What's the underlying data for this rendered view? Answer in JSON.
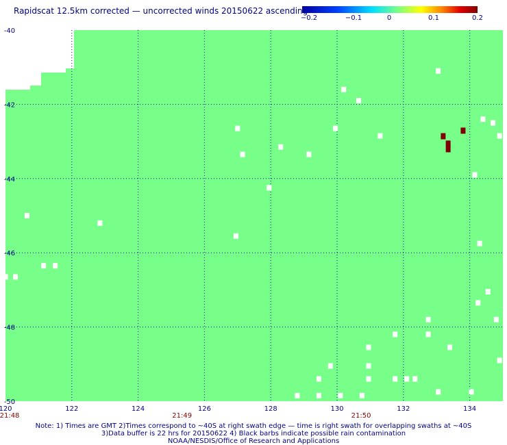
{
  "title": "Rapidscat 12.5km corrected — uncorrected winds 20150622 ascending",
  "colorbar": {
    "ticks": [
      "−0.2",
      "−0.1",
      "0",
      "0.1",
      "0.2"
    ],
    "colors": [
      "#0000a0",
      "#0040ff",
      "#00e0ff",
      "#80ff80",
      "#ffff00",
      "#ff8000",
      "#e00000",
      "#800000"
    ]
  },
  "map": {
    "background_color": "#77ff8a",
    "missing_color": "#ffffff",
    "lon_range": [
      120,
      135
    ],
    "lat_range": [
      -50,
      -40
    ],
    "lon_ticks": [
      "120",
      "122",
      "124",
      "126",
      "128",
      "130",
      "132",
      "134"
    ],
    "lat_ticks": [
      "-40",
      "-42",
      "-44",
      "-46",
      "-48",
      "-50"
    ],
    "time_labels": [
      {
        "text": "21:48",
        "lon": 120
      },
      {
        "text": "21:49",
        "lon": 125.2
      },
      {
        "text": "21:50",
        "lon": 130.6
      }
    ],
    "time_color": "#800000",
    "white_cells": [
      [
        133.05,
        -41.1
      ],
      [
        130.2,
        -41.6
      ],
      [
        130.65,
        -41.9
      ],
      [
        127.0,
        -42.65
      ],
      [
        129.95,
        -42.65
      ],
      [
        131.3,
        -42.85
      ],
      [
        134.4,
        -42.4
      ],
      [
        134.7,
        -42.5
      ],
      [
        134.9,
        -42.85
      ],
      [
        127.15,
        -43.35
      ],
      [
        128.3,
        -43.15
      ],
      [
        129.15,
        -43.35
      ],
      [
        134.15,
        -43.9
      ],
      [
        127.95,
        -44.25
      ],
      [
        120.65,
        -45.0
      ],
      [
        122.85,
        -45.2
      ],
      [
        126.95,
        -45.55
      ],
      [
        134.3,
        -45.75
      ],
      [
        121.15,
        -46.35
      ],
      [
        121.5,
        -46.35
      ],
      [
        120.0,
        -46.65
      ],
      [
        120.3,
        -46.65
      ],
      [
        134.55,
        -47.05
      ],
      [
        134.25,
        -47.35
      ],
      [
        134.8,
        -47.8
      ],
      [
        132.75,
        -47.8
      ],
      [
        131.75,
        -48.2
      ],
      [
        132.75,
        -48.2
      ],
      [
        133.4,
        -48.55
      ],
      [
        130.95,
        -48.55
      ],
      [
        134.9,
        -48.9
      ],
      [
        129.8,
        -49.05
      ],
      [
        130.95,
        -49.05
      ],
      [
        129.45,
        -49.4
      ],
      [
        130.95,
        -49.4
      ],
      [
        131.75,
        -49.4
      ],
      [
        132.1,
        -49.4
      ],
      [
        132.35,
        -49.4
      ],
      [
        133.05,
        -49.75
      ],
      [
        134.05,
        -49.75
      ],
      [
        128.8,
        -49.85
      ],
      [
        129.45,
        -49.85
      ],
      [
        130.1,
        -49.85
      ],
      [
        130.75,
        -49.85
      ]
    ],
    "red_cells": [
      {
        "lon": 133.2,
        "lat": -42.85,
        "color": "#800000"
      },
      {
        "lon": 133.35,
        "lat": -43.05,
        "color": "#800000"
      },
      {
        "lon": 133.35,
        "lat": -43.2,
        "color": "#800000"
      },
      {
        "lon": 133.8,
        "lat": -42.7,
        "color": "#800000"
      }
    ]
  },
  "notes": {
    "line1": "Note: 1) Times are GMT 2)Times correspond to ~40S at right swath edge — time is right swath for overlapping swaths at ~40S",
    "line2": "3)Data buffer is 22 hrs for 20150622 4) Black barbs indicate possible rain contamination",
    "line3": "NOAA/NESDIS/Office of Research and Applications"
  }
}
